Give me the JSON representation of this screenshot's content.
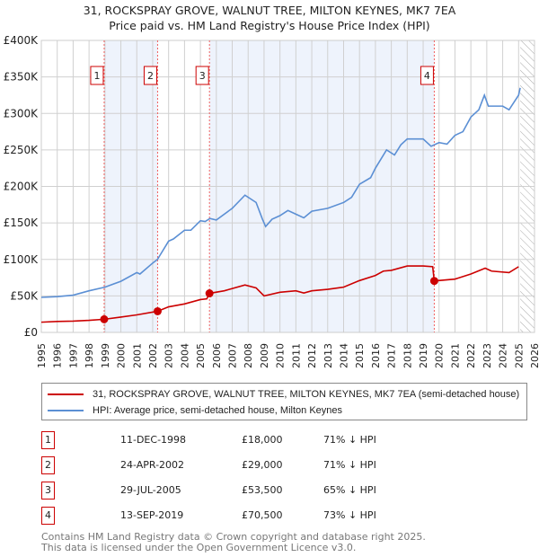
{
  "chart_data": {
    "type": "line",
    "title": "31, ROCKSPRAY GROVE, WALNUT TREE, MILTON KEYNES, MK7 7EA",
    "subtitle": "Price paid vs. HM Land Registry's House Price Index (HPI)",
    "xlim": [
      1995,
      2026
    ],
    "ylim": [
      0,
      400000
    ],
    "y_ticks": [
      {
        "v": 0,
        "label": "£0"
      },
      {
        "v": 50000,
        "label": "£50K"
      },
      {
        "v": 100000,
        "label": "£100K"
      },
      {
        "v": 150000,
        "label": "£150K"
      },
      {
        "v": 200000,
        "label": "£200K"
      },
      {
        "v": 250000,
        "label": "£250K"
      },
      {
        "v": 300000,
        "label": "£300K"
      },
      {
        "v": 350000,
        "label": "£350K"
      },
      {
        "v": 400000,
        "label": "£400K"
      }
    ],
    "x_ticks": [
      "1995",
      "1996",
      "1997",
      "1998",
      "1999",
      "2000",
      "2001",
      "2002",
      "2003",
      "2004",
      "2005",
      "2006",
      "2007",
      "2008",
      "2009",
      "2010",
      "2011",
      "2012",
      "2013",
      "2014",
      "2015",
      "2016",
      "2017",
      "2018",
      "2019",
      "2020",
      "2021",
      "2022",
      "2023",
      "2024",
      "2025",
      "2026"
    ],
    "series": [
      {
        "name": "31, ROCKSPRAY GROVE, WALNUT TREE, MILTON KEYNES, MK7 7EA (semi-detached house)",
        "color": "#cc0000",
        "x": [
          1995,
          1996,
          1997,
          1998,
          1998.95,
          2000,
          2001,
          2002.31,
          2003,
          2004,
          2005,
          2005.4,
          2005.57,
          2006.5,
          2007.8,
          2008.5,
          2009,
          2010,
          2011,
          2011.5,
          2012,
          2013,
          2014,
          2015,
          2016,
          2016.5,
          2017,
          2018,
          2019,
          2019.6,
          2019.7,
          2021,
          2022,
          2022.9,
          2023.3,
          2024.4,
          2025
        ],
        "y": [
          14000,
          15000,
          15500,
          16500,
          18000,
          21000,
          24000,
          29000,
          35000,
          39000,
          45000,
          46000,
          53500,
          57000,
          65000,
          61000,
          50000,
          55000,
          57000,
          54000,
          57000,
          59000,
          62000,
          71000,
          78000,
          84000,
          85000,
          91000,
          91000,
          90000,
          70500,
          73000,
          80000,
          88000,
          84000,
          82000,
          90000
        ]
      },
      {
        "name": "HPI: Average price, semi-detached house, Milton Keynes",
        "color": "#5b8fd4",
        "x": [
          1995,
          1996,
          1997,
          1998,
          1999,
          2000,
          2001,
          2001.2,
          2002,
          2002.3,
          2003,
          2003.3,
          2004,
          2004.4,
          2005,
          2005.3,
          2005.6,
          2006,
          2007,
          2007.8,
          2008.5,
          2008.9,
          2009.1,
          2009.5,
          2010,
          2010.5,
          2011,
          2011.5,
          2012,
          2013,
          2014,
          2014.5,
          2015,
          2015.7,
          2016,
          2016.7,
          2017.2,
          2017.6,
          2018,
          2019,
          2019.5,
          2020,
          2020.5,
          2021,
          2021.5,
          2022,
          2022.5,
          2022.85,
          2023.1,
          2024,
          2024.4,
          2025,
          2025.1
        ],
        "y": [
          48000,
          49000,
          51000,
          57000,
          62000,
          70000,
          82000,
          80000,
          95000,
          100000,
          125000,
          128000,
          140000,
          140000,
          153000,
          152000,
          156000,
          154000,
          170000,
          188000,
          178000,
          155000,
          145000,
          155000,
          160000,
          167000,
          162000,
          157000,
          166000,
          170000,
          178000,
          185000,
          203000,
          212000,
          225000,
          250000,
          243000,
          257000,
          265000,
          265000,
          255000,
          260000,
          258000,
          270000,
          275000,
          295000,
          305000,
          325000,
          310000,
          310000,
          305000,
          325000,
          335000
        ]
      }
    ],
    "sales": [
      {
        "num": "1",
        "x": 1998.95,
        "y": 18000,
        "date": "11-DEC-1998",
        "price": "£18,000",
        "hpi": "71% ↓ HPI"
      },
      {
        "num": "2",
        "x": 2002.31,
        "y": 29000,
        "date": "24-APR-2002",
        "price": "£29,000",
        "hpi": "71% ↓ HPI"
      },
      {
        "num": "3",
        "x": 2005.57,
        "y": 53500,
        "date": "29-JUL-2005",
        "price": "£53,500",
        "hpi": "65% ↓ HPI"
      },
      {
        "num": "4",
        "x": 2019.7,
        "y": 70500,
        "date": "13-SEP-2019",
        "price": "£70,500",
        "hpi": "73% ↓ HPI"
      }
    ],
    "shaded_ranges": [
      [
        1998.95,
        2002.31
      ],
      [
        2005.57,
        2019.7
      ]
    ],
    "forecast_start": 2025.1
  },
  "footer": {
    "line1": "Contains HM Land Registry data © Crown copyright and database right 2025.",
    "line2": "This data is licensed under the Open Government Licence v3.0."
  }
}
